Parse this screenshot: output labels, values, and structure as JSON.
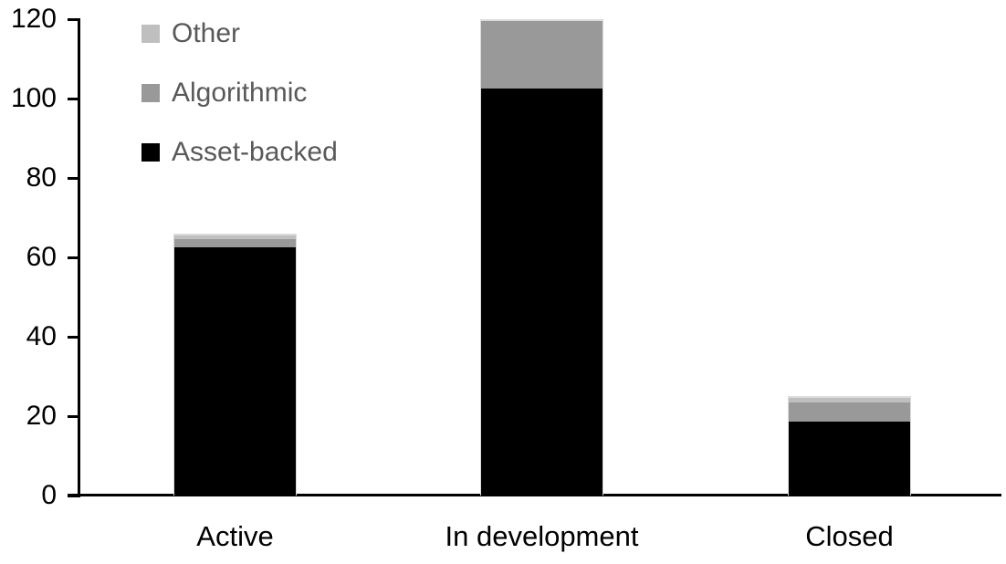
{
  "chart_data": {
    "type": "bar",
    "stacked": true,
    "categories": [
      "Active",
      "In development",
      "Closed"
    ],
    "series": [
      {
        "name": "Other",
        "color": "#bfbfbf",
        "values": [
          1,
          0,
          1
        ]
      },
      {
        "name": "Algorithmic",
        "color": "#999999",
        "values": [
          2,
          17,
          5
        ]
      },
      {
        "name": "Asset-backed",
        "color": "#000000",
        "values": [
          63,
          103,
          19
        ]
      }
    ],
    "totals": [
      66,
      120,
      25
    ],
    "ylim": [
      0,
      120
    ],
    "yticks": [
      0,
      20,
      40,
      60,
      80,
      100,
      120
    ],
    "xlabel": "",
    "ylabel": "",
    "grid": false,
    "legend_position": "top-left",
    "colors": {
      "axis": "#000000",
      "tick_label": "#000000",
      "legend_text": "#595959",
      "background": "#ffffff"
    }
  }
}
